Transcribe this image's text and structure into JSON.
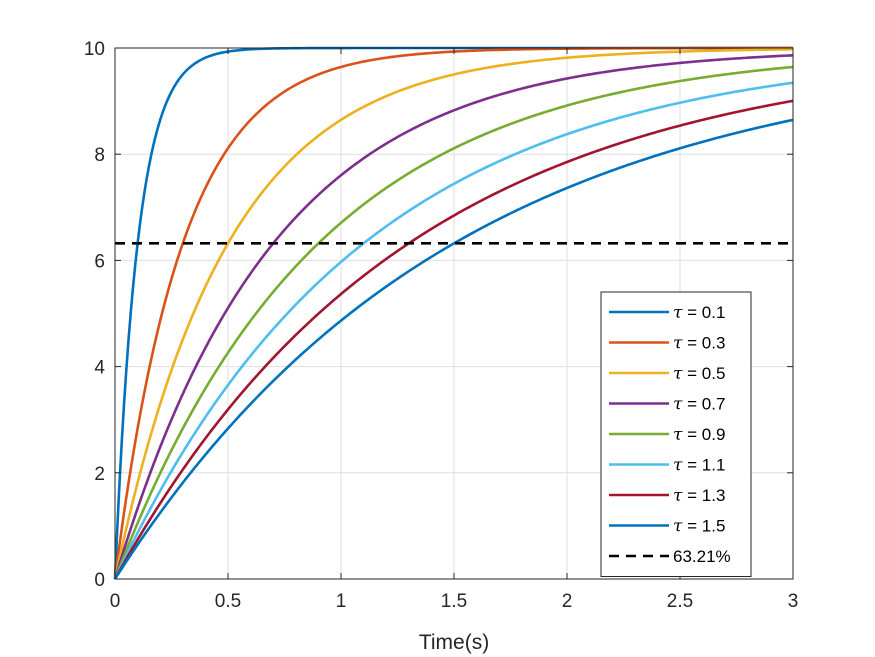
{
  "chart_data": {
    "type": "line",
    "xlabel": "Time(s)",
    "ylabel": "",
    "xlim": [
      0,
      3
    ],
    "ylim": [
      0,
      10
    ],
    "xticks": [
      "0",
      "0.5",
      "1",
      "1.5",
      "2",
      "2.5",
      "3"
    ],
    "yticks": [
      "0",
      "2",
      "4",
      "6",
      "8",
      "10"
    ],
    "grid": true,
    "legend_position": "bottom-right",
    "x": [
      0,
      0.1,
      0.2,
      0.3,
      0.5,
      0.75,
      1.0,
      1.5,
      2.0,
      2.5,
      3.0
    ],
    "series": [
      {
        "name": "τ = 0.1",
        "tau": 0.1,
        "color": "#0072BD",
        "dash": false,
        "values": [
          0,
          6.32,
          8.65,
          9.5,
          9.93,
          10.0,
          10.0,
          10.0,
          10.0,
          10.0,
          10.0
        ]
      },
      {
        "name": "τ = 0.3",
        "tau": 0.3,
        "color": "#D95319",
        "dash": false,
        "values": [
          0,
          2.83,
          4.87,
          6.32,
          8.11,
          9.18,
          9.64,
          9.93,
          9.99,
          10.0,
          10.0
        ]
      },
      {
        "name": "τ = 0.5",
        "tau": 0.5,
        "color": "#EDB120",
        "dash": false,
        "values": [
          0,
          1.81,
          3.3,
          4.51,
          6.32,
          7.77,
          8.65,
          9.5,
          9.82,
          9.93,
          9.98
        ]
      },
      {
        "name": "τ = 0.7",
        "tau": 0.7,
        "color": "#7E2F8E",
        "dash": false,
        "values": [
          0,
          1.33,
          2.49,
          3.49,
          5.1,
          6.57,
          7.6,
          8.83,
          9.43,
          9.72,
          9.86
        ]
      },
      {
        "name": "τ = 0.9",
        "tau": 0.9,
        "color": "#77AC30",
        "dash": false,
        "values": [
          0,
          1.05,
          1.99,
          2.83,
          4.26,
          5.65,
          6.71,
          8.11,
          8.92,
          9.38,
          9.64
        ]
      },
      {
        "name": "τ = 1.1",
        "tau": 1.1,
        "color": "#4DBEEE",
        "dash": false,
        "values": [
          0,
          0.87,
          1.66,
          2.39,
          3.65,
          4.94,
          5.97,
          7.44,
          8.38,
          8.97,
          9.35
        ]
      },
      {
        "name": "τ = 1.3",
        "tau": 1.3,
        "color": "#A2142F",
        "dash": false,
        "values": [
          0,
          0.74,
          1.43,
          2.06,
          3.21,
          4.38,
          5.37,
          6.84,
          7.85,
          8.54,
          9.01
        ]
      },
      {
        "name": "τ = 1.5",
        "tau": 1.5,
        "color": "#0072BD",
        "dash": false,
        "values": [
          0,
          0.65,
          1.25,
          1.81,
          2.83,
          3.93,
          4.87,
          6.32,
          7.36,
          8.11,
          8.65
        ]
      },
      {
        "name": "63.21%",
        "color": "#000000",
        "dash": true,
        "values": [
          6.321,
          6.321,
          6.321,
          6.321,
          6.321,
          6.321,
          6.321,
          6.321,
          6.321,
          6.321,
          6.321
        ]
      }
    ]
  }
}
